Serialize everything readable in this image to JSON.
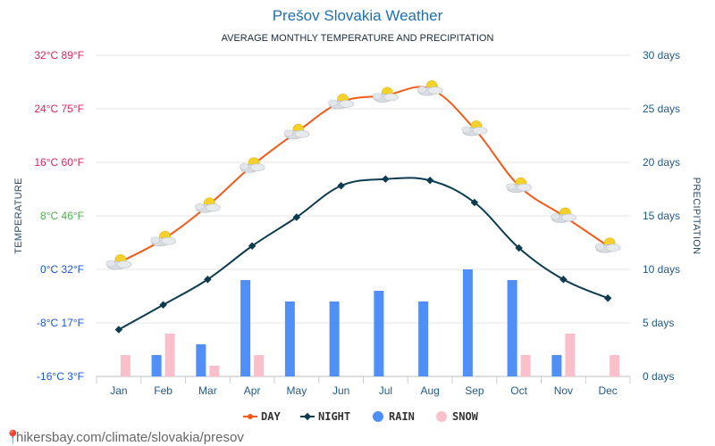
{
  "chart_data": {
    "type": "line+bar",
    "title": "Prešov Slovakia Weather",
    "subtitle": "AVERAGE MONTHLY TEMPERATURE AND PRECIPITATION",
    "xlabel": "",
    "ylabel_left": "TEMPERATURE",
    "ylabel_right": "PRECIPITATION",
    "categories": [
      "Jan",
      "Feb",
      "Mar",
      "Apr",
      "May",
      "Jun",
      "Jul",
      "Aug",
      "Sep",
      "Oct",
      "Nov",
      "Dec"
    ],
    "temp_axis": {
      "ylim": [
        -16,
        32
      ],
      "ticks": [
        {
          "value": 32,
          "label": "32°C 89°F",
          "color": "#e0245e"
        },
        {
          "value": 24,
          "label": "24°C 75°F",
          "color": "#e0245e"
        },
        {
          "value": 16,
          "label": "16°C 60°F",
          "color": "#e0245e"
        },
        {
          "value": 8,
          "label": "8°C 46°F",
          "color": "#4cae4c"
        },
        {
          "value": 0,
          "label": "0°C 32°F",
          "color": "#1a56db"
        },
        {
          "value": -8,
          "label": "-8°C 17°F",
          "color": "#1a56db"
        },
        {
          "value": -16,
          "label": "-16°C 3°F",
          "color": "#1a56db"
        }
      ]
    },
    "precip_axis": {
      "ylim": [
        0,
        30
      ],
      "ticks": [
        {
          "value": 30,
          "label": "30 days"
        },
        {
          "value": 25,
          "label": "25 days"
        },
        {
          "value": 20,
          "label": "20 days"
        },
        {
          "value": 15,
          "label": "15 days"
        },
        {
          "value": 10,
          "label": "10 days"
        },
        {
          "value": 5,
          "label": "5 days"
        },
        {
          "value": 0,
          "label": "0 days"
        }
      ]
    },
    "series": [
      {
        "name": "DAY",
        "kind": "line",
        "axis": "temp",
        "color": "#f05a1a",
        "values": [
          1,
          4.5,
          9.5,
          15.5,
          20.5,
          25,
          26,
          27,
          21,
          12.5,
          8,
          3.5
        ]
      },
      {
        "name": "NIGHT",
        "kind": "line",
        "axis": "temp",
        "color": "#0d3b4f",
        "values": [
          -9,
          -5.3,
          -1.5,
          3.5,
          7.8,
          12.5,
          13.5,
          13.3,
          10,
          3.2,
          -1.5,
          -4.3
        ]
      },
      {
        "name": "RAIN",
        "kind": "bar",
        "axis": "precip",
        "color": "#4f8ff7",
        "values": [
          0,
          2,
          3,
          9,
          7,
          7,
          8,
          7,
          10,
          9,
          2,
          0
        ]
      },
      {
        "name": "SNOW",
        "kind": "bar",
        "axis": "precip",
        "color": "#f9c0cb",
        "values": [
          2,
          4,
          1,
          2,
          0,
          0,
          0,
          0,
          0,
          2,
          4,
          2
        ]
      }
    ],
    "legend": [
      {
        "name": "DAY",
        "color": "#f05a1a",
        "marker": "line-dot"
      },
      {
        "name": "NIGHT",
        "color": "#0d3b4f",
        "marker": "line-diamond"
      },
      {
        "name": "RAIN",
        "color": "#4f8ff7",
        "marker": "circle"
      },
      {
        "name": "SNOW",
        "color": "#f9c0cb",
        "marker": "circle"
      }
    ],
    "legend_position": "bottom-center",
    "day_marker_icon": "partly-cloudy-icon"
  },
  "footer": {
    "watermark": "hikersbay.com/climate/slovakia/presov"
  }
}
